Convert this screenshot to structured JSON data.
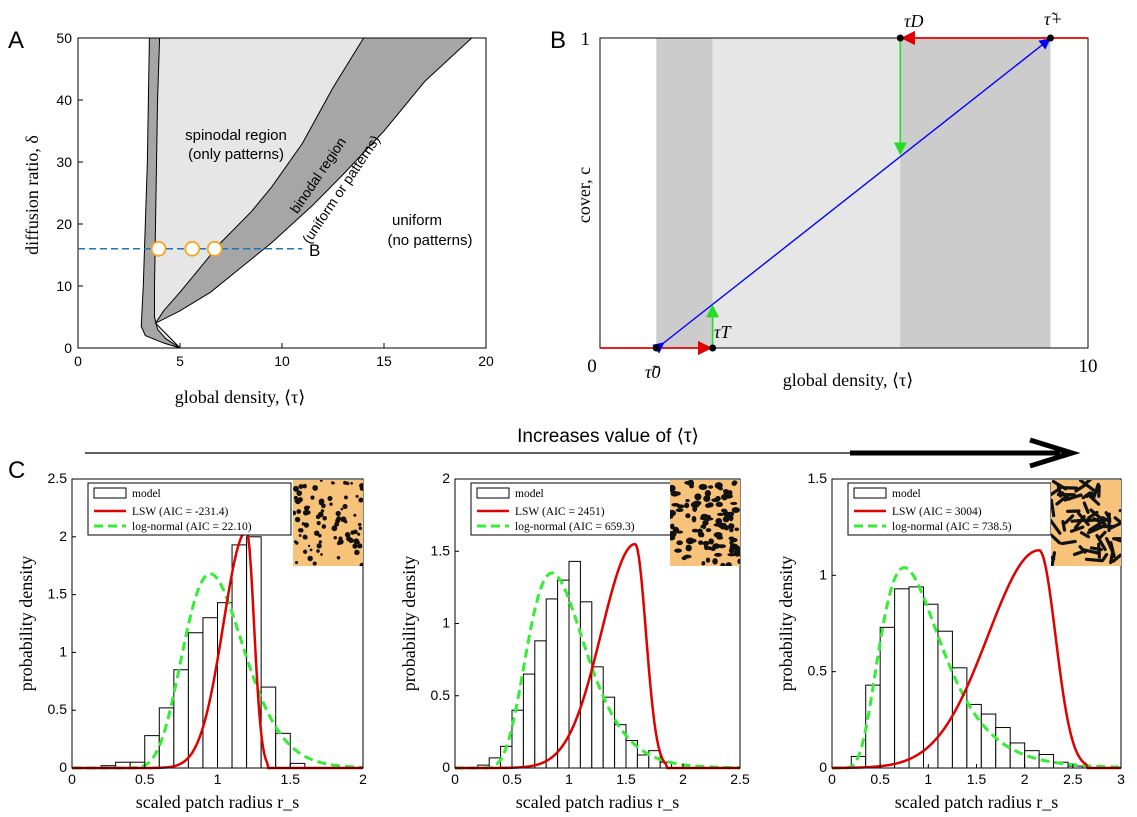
{
  "figure": {
    "arrow_label": "Increases value of ⟨τ⟩"
  },
  "panel_a": {
    "letter": "A",
    "region_spinodal_1": "spinodal region",
    "region_spinodal_2": "(only patterns)",
    "region_binodal_1": "binodal region",
    "region_binodal_2": "(uniform or patterns)",
    "region_uniform_1": "uniform",
    "region_uniform_2": "(no patterns)",
    "line_label": "B",
    "colors": {
      "spinodal": "#e6e6e6",
      "binodal": "#a6a6a6",
      "line": "#1f77b4",
      "markers": "#f5a623"
    }
  },
  "panel_b": {
    "letter": "B",
    "label_tau_D": "τD",
    "label_tau_plus": "τ̃+",
    "label_tau_T": "τT",
    "label_tau_0": "τ̃0",
    "colors": {
      "light": "#e6e6e6",
      "dark": "#cccccc",
      "red": "#e00000",
      "green": "#22dd22",
      "blue": "#0000ff"
    }
  },
  "panel_c": {
    "letter": "C",
    "legend_model": "model",
    "legend_lsw_prefix": "LSW (AIC = ",
    "legend_logn_prefix": "log-normal (AIC = ",
    "colors": {
      "lsw": "#e00000",
      "lognormal": "#33ee33",
      "leopard_bg": "#f7c27a",
      "spot": "#111111"
    }
  },
  "chart_data": [
    {
      "type": "area",
      "xlabel": "global density, ⟨τ⟩",
      "ylabel": "diffusion ratio, δ",
      "xlim": [
        0,
        20
      ],
      "ylim": [
        0,
        50
      ],
      "xticks": [
        0,
        5,
        10,
        15,
        20
      ],
      "yticks": [
        0,
        10,
        20,
        30,
        40,
        50
      ],
      "grid": false,
      "series": [
        {
          "name": "spinodal region",
          "left_boundary": [
            [
              5,
              0
            ],
            [
              4.3,
              1.5
            ],
            [
              3.9,
              3
            ],
            [
              3.75,
              5
            ],
            [
              3.75,
              10
            ],
            [
              3.8,
              20
            ],
            [
              3.85,
              30
            ],
            [
              3.9,
              40
            ],
            [
              4,
              50
            ]
          ],
          "right_boundary": [
            [
              3.8,
              4
            ],
            [
              4.2,
              6
            ],
            [
              5,
              9
            ],
            [
              6,
              13
            ],
            [
              7,
              17
            ],
            [
              8.5,
              22
            ],
            [
              9.5,
              26
            ],
            [
              11,
              33
            ],
            [
              12.5,
              42
            ],
            [
              14,
              50
            ]
          ]
        },
        {
          "name": "binodal region",
          "left_boundary": [
            [
              5,
              0
            ],
            [
              4.2,
              0.8
            ],
            [
              3.3,
              2
            ],
            [
              3.1,
              3.5
            ],
            [
              3.2,
              10
            ],
            [
              3.3,
              20
            ],
            [
              3.4,
              30
            ],
            [
              3.45,
              40
            ],
            [
              3.5,
              50
            ]
          ],
          "right_boundary": [
            [
              3.8,
              4
            ],
            [
              5,
              6
            ],
            [
              6.5,
              9
            ],
            [
              8,
              13
            ],
            [
              9.5,
              17
            ],
            [
              11.5,
              23
            ],
            [
              13,
              28
            ],
            [
              15,
              35
            ],
            [
              17,
              43
            ],
            [
              19.3,
              50
            ]
          ]
        }
      ],
      "line": {
        "delta": 16,
        "x_range": [
          0,
          11
        ]
      },
      "markers": [
        [
          3.95,
          16
        ],
        [
          5.6,
          16
        ],
        [
          6.7,
          16
        ]
      ]
    },
    {
      "type": "line",
      "xlabel": "global density, ⟨τ⟩",
      "ylabel": "cover, c",
      "xlim": [
        0,
        10
      ],
      "ylim": [
        0,
        1
      ],
      "xticks": [
        0,
        10
      ],
      "yticks": [
        1
      ],
      "bands": [
        {
          "x": [
            1.5,
            3.0
          ],
          "shade": "dark"
        },
        {
          "x": [
            3.0,
            8.0
          ],
          "shade": "light"
        },
        {
          "x": [
            8.0,
            12.0
          ],
          "shade": "dark"
        }
      ],
      "points": {
        "tau_0": [
          1.5,
          0
        ],
        "tau_T": [
          3.0,
          0
        ],
        "tau_D": [
          8.0,
          1
        ],
        "tau_plus": [
          12.0,
          1
        ]
      },
      "blue_line": [
        [
          1.5,
          0
        ],
        [
          12.0,
          1
        ]
      ],
      "x_axis_max_display": 13
    },
    {
      "type": "bar",
      "xlabel": "scaled patch radius r_s",
      "ylabel": "probability density",
      "xlim": [
        0,
        2
      ],
      "ylim": [
        0,
        2.5
      ],
      "xticks": [
        0,
        0.5,
        1,
        1.5,
        2
      ],
      "yticks": [
        0,
        0.5,
        1,
        1.5,
        2,
        2.5
      ],
      "bin_edges": [
        0.2,
        0.3,
        0.4,
        0.5,
        0.6,
        0.7,
        0.8,
        0.9,
        1.0,
        1.1,
        1.2,
        1.3,
        1.4,
        1.5
      ],
      "model_values": [
        0.02,
        0.05,
        0.05,
        0.28,
        0.52,
        0.85,
        1.17,
        1.3,
        1.43,
        1.93,
        2.0,
        0.7,
        0.3,
        0.04
      ],
      "lsw_aic": "-231.4",
      "lognormal_aic": "22.10",
      "lsw_peak": 1.2,
      "lsw_width": 0.27,
      "lsw_height": 2.05,
      "logn_mu": 0.95,
      "logn_sigma": 0.22,
      "logn_height": 1.68
    },
    {
      "type": "bar",
      "xlabel": "scaled patch radius r_s",
      "ylabel": "probability density",
      "xlim": [
        0,
        2.5
      ],
      "ylim": [
        0,
        2
      ],
      "xticks": [
        0,
        0.5,
        1,
        1.5,
        2,
        2.5
      ],
      "yticks": [
        0,
        0.5,
        1,
        1.5,
        2
      ],
      "bin_edges": [
        0.2,
        0.3,
        0.4,
        0.5,
        0.6,
        0.7,
        0.8,
        0.9,
        1.0,
        1.1,
        1.2,
        1.3,
        1.4,
        1.5,
        1.6,
        1.7,
        1.8
      ],
      "model_values": [
        0.02,
        0.07,
        0.15,
        0.4,
        0.65,
        0.88,
        1.17,
        1.3,
        1.43,
        1.15,
        0.7,
        0.49,
        0.3,
        0.19,
        0.09,
        0.12,
        0.04
      ],
      "lsw_aic": "2451",
      "lognormal_aic": "659.3",
      "lsw_peak": 1.58,
      "lsw_width": 0.5,
      "lsw_height": 1.55,
      "logn_mu": 0.85,
      "logn_sigma": 0.3,
      "logn_height": 1.35
    },
    {
      "type": "bar",
      "xlabel": "scaled patch radius r_s",
      "ylabel": "probability density",
      "xlim": [
        0,
        3
      ],
      "ylim": [
        0,
        1.5
      ],
      "xticks": [
        0,
        0.5,
        1,
        1.5,
        2,
        2.5,
        3
      ],
      "yticks": [
        0,
        0.5,
        1,
        1.5
      ],
      "bin_edges": [
        0.2,
        0.35,
        0.5,
        0.65,
        0.8,
        0.95,
        1.1,
        1.25,
        1.4,
        1.55,
        1.7,
        1.85,
        2.0,
        2.15,
        2.3,
        2.45,
        2.6
      ],
      "model_values": [
        0.06,
        0.43,
        0.73,
        0.93,
        0.94,
        0.85,
        0.71,
        0.52,
        0.33,
        0.28,
        0.21,
        0.13,
        0.09,
        0.07,
        0.03,
        0.01
      ],
      "lsw_aic": "3004",
      "lognormal_aic": "738.5",
      "lsw_peak": 2.15,
      "lsw_width": 0.9,
      "lsw_height": 1.13,
      "logn_mu": 0.75,
      "logn_sigma": 0.42,
      "logn_height": 1.04
    }
  ]
}
